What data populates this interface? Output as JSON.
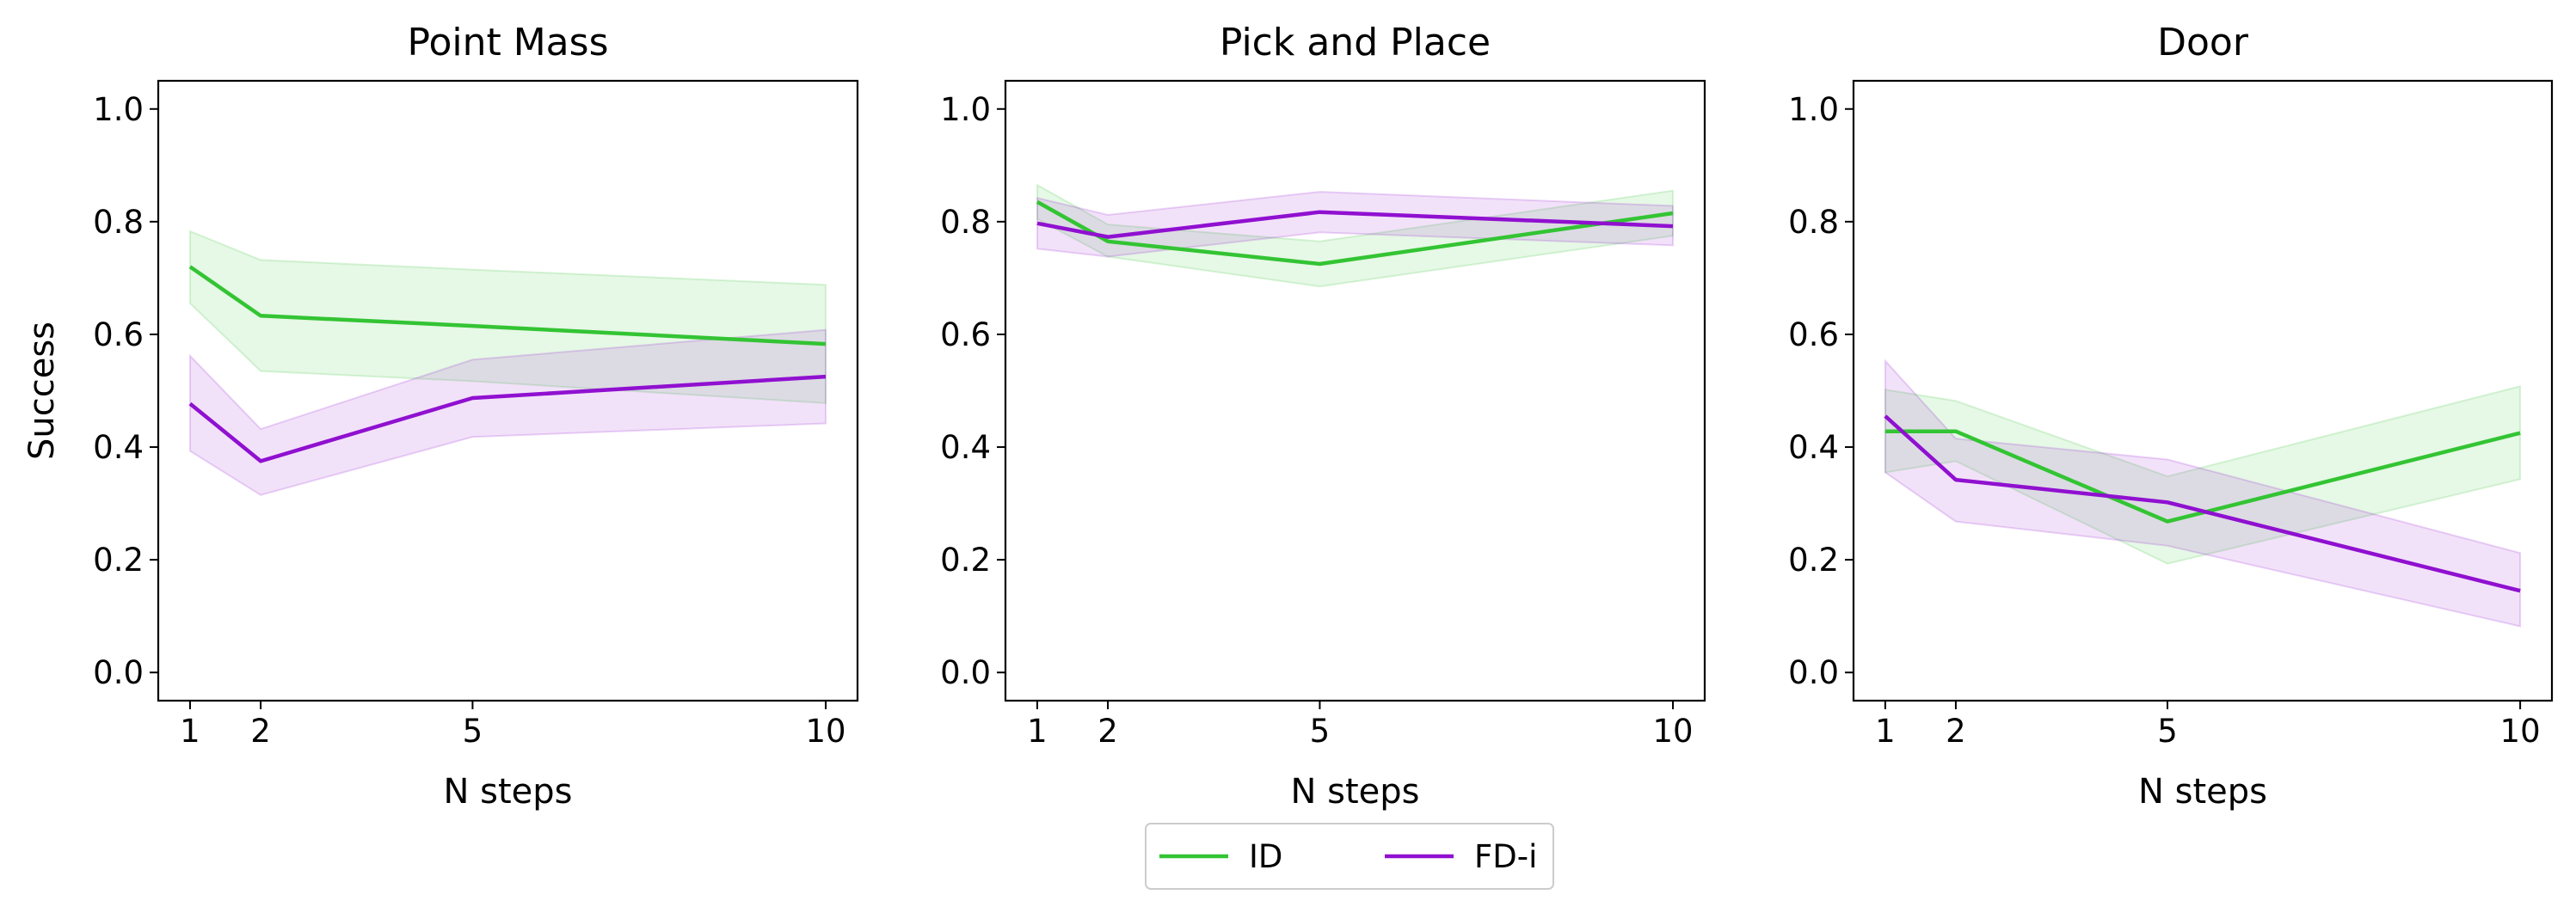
{
  "chart_data": {
    "type": "line",
    "legend": {
      "placement": "bottom-center",
      "entries": [
        {
          "label": "ID",
          "color": "#33c433"
        },
        {
          "label": "FD-i",
          "color": "#9010d0"
        }
      ]
    },
    "panels": [
      {
        "title": "Point Mass",
        "xlabel": "N steps",
        "ylabel": "Success",
        "xlim": [
          0.55,
          10.45
        ],
        "ylim": [
          -0.05,
          1.05
        ],
        "xticks": [
          1,
          2,
          5,
          10
        ],
        "yticks": [
          0.0,
          0.2,
          0.4,
          0.6,
          0.8,
          1.0
        ],
        "x": [
          1,
          2,
          5,
          10
        ],
        "series": [
          {
            "name": "ID",
            "color": "#33c433",
            "values": [
              0.72,
              0.633,
              0.615,
              0.583
            ],
            "lower": [
              0.655,
              0.535,
              0.517,
              0.478
            ],
            "upper": [
              0.783,
              0.732,
              0.715,
              0.688
            ]
          },
          {
            "name": "FD-i",
            "color": "#9010d0",
            "values": [
              0.477,
              0.375,
              0.487,
              0.525
            ],
            "lower": [
              0.393,
              0.315,
              0.418,
              0.442
            ],
            "upper": [
              0.562,
              0.432,
              0.555,
              0.608
            ]
          }
        ]
      },
      {
        "title": "Pick and Place",
        "xlabel": "N steps",
        "ylabel": "",
        "xlim": [
          0.55,
          10.45
        ],
        "ylim": [
          -0.05,
          1.05
        ],
        "xticks": [
          1,
          2,
          5,
          10
        ],
        "yticks": [
          0.0,
          0.2,
          0.4,
          0.6,
          0.8,
          1.0
        ],
        "x": [
          1,
          2,
          5,
          10
        ],
        "series": [
          {
            "name": "ID",
            "color": "#33c433",
            "values": [
              0.835,
              0.765,
              0.725,
              0.815
            ],
            "lower": [
              0.805,
              0.738,
              0.685,
              0.775
            ],
            "upper": [
              0.865,
              0.795,
              0.765,
              0.855
            ]
          },
          {
            "name": "FD-i",
            "color": "#9010d0",
            "values": [
              0.797,
              0.773,
              0.817,
              0.792
            ],
            "lower": [
              0.752,
              0.738,
              0.781,
              0.758
            ],
            "upper": [
              0.842,
              0.812,
              0.853,
              0.828
            ]
          }
        ]
      },
      {
        "title": "Door",
        "xlabel": "N steps",
        "ylabel": "",
        "xlim": [
          0.55,
          10.45
        ],
        "ylim": [
          -0.05,
          1.05
        ],
        "xticks": [
          1,
          2,
          5,
          10
        ],
        "yticks": [
          0.0,
          0.2,
          0.4,
          0.6,
          0.8,
          1.0
        ],
        "x": [
          1,
          2,
          5,
          10
        ],
        "series": [
          {
            "name": "ID",
            "color": "#33c433",
            "values": [
              0.428,
              0.428,
              0.268,
              0.425
            ],
            "lower": [
              0.355,
              0.375,
              0.193,
              0.343
            ],
            "upper": [
              0.502,
              0.482,
              0.348,
              0.508
            ]
          },
          {
            "name": "FD-i",
            "color": "#9010d0",
            "values": [
              0.455,
              0.342,
              0.302,
              0.145
            ],
            "lower": [
              0.355,
              0.268,
              0.225,
              0.082
            ],
            "upper": [
              0.553,
              0.415,
              0.378,
              0.212
            ]
          }
        ]
      }
    ]
  }
}
